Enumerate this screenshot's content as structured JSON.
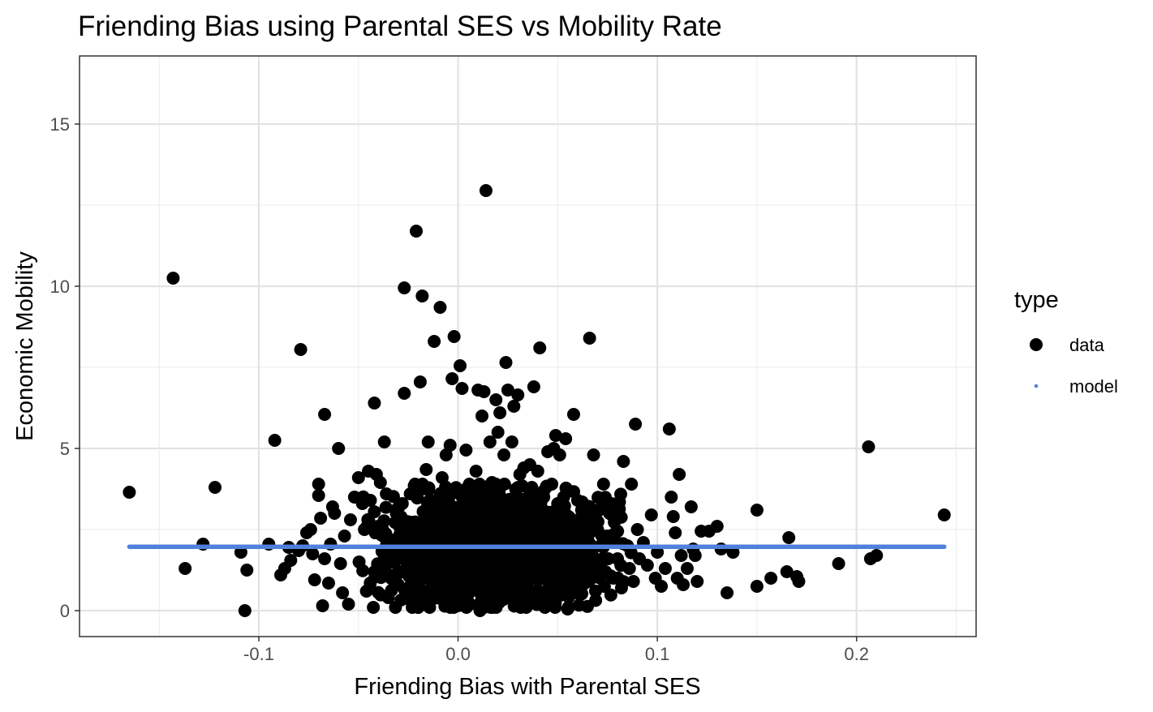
{
  "chart_data": {
    "type": "scatter",
    "title": "Friending Bias using Parental SES vs Mobility Rate",
    "xlabel": "Friending Bias with Parental SES",
    "ylabel": "Economic Mobility",
    "xlim": [
      -0.19,
      0.26
    ],
    "ylim": [
      -0.8,
      17.1
    ],
    "x_ticks": [
      -0.1,
      0.0,
      0.1,
      0.2
    ],
    "x_tick_labels": [
      "-0.1",
      "0.0",
      "0.1",
      "0.2"
    ],
    "x_minor_ticks": [
      -0.15,
      -0.05,
      0.05,
      0.15,
      0.25
    ],
    "y_ticks": [
      0,
      5,
      10,
      15
    ],
    "y_tick_labels": [
      "0",
      "5",
      "10",
      "15"
    ],
    "y_minor_ticks": [
      2.5,
      7.5,
      12.5
    ],
    "grid": true,
    "legend": {
      "title": "type",
      "position": "right",
      "items": [
        {
          "label": "data",
          "color": "#000000",
          "marker": "large-dot"
        },
        {
          "label": "model",
          "color": "#5080dd",
          "marker": "small-dot"
        }
      ]
    },
    "series": [
      {
        "name": "data",
        "color": "#000000",
        "points": [
          [
            -0.165,
            3.65
          ],
          [
            -0.143,
            10.25
          ],
          [
            -0.137,
            1.3
          ],
          [
            -0.128,
            2.05
          ],
          [
            -0.122,
            3.8
          ],
          [
            -0.109,
            1.8
          ],
          [
            -0.107,
            0.0
          ],
          [
            -0.106,
            1.25
          ],
          [
            -0.095,
            2.05
          ],
          [
            -0.092,
            5.25
          ],
          [
            -0.089,
            1.1
          ],
          [
            -0.087,
            1.3
          ],
          [
            -0.085,
            1.95
          ],
          [
            -0.084,
            1.55
          ],
          [
            -0.08,
            1.85
          ],
          [
            -0.079,
            8.05
          ],
          [
            -0.078,
            2.0
          ],
          [
            -0.076,
            2.4
          ],
          [
            -0.074,
            2.5
          ],
          [
            -0.073,
            1.75
          ],
          [
            -0.072,
            0.95
          ],
          [
            -0.07,
            3.9
          ],
          [
            -0.07,
            3.55
          ],
          [
            -0.069,
            2.85
          ],
          [
            -0.068,
            0.15
          ],
          [
            -0.067,
            6.05
          ],
          [
            -0.067,
            1.6
          ],
          [
            -0.065,
            0.85
          ],
          [
            -0.064,
            2.05
          ],
          [
            -0.063,
            3.2
          ],
          [
            -0.062,
            3.0
          ],
          [
            -0.06,
            5.0
          ],
          [
            -0.059,
            1.45
          ],
          [
            -0.058,
            0.55
          ],
          [
            -0.057,
            2.3
          ],
          [
            -0.055,
            0.2
          ],
          [
            -0.054,
            2.8
          ],
          [
            -0.052,
            3.5
          ],
          [
            -0.05,
            4.1
          ],
          [
            -0.048,
            3.3
          ],
          [
            -0.047,
            2.5
          ],
          [
            -0.046,
            0.6
          ],
          [
            -0.045,
            4.3
          ],
          [
            -0.044,
            3.4
          ],
          [
            -0.042,
            6.4
          ],
          [
            -0.042,
            1.2
          ],
          [
            -0.041,
            4.2
          ],
          [
            -0.04,
            2.6
          ],
          [
            -0.039,
            3.95
          ],
          [
            -0.037,
            5.2
          ],
          [
            -0.036,
            3.6
          ],
          [
            -0.035,
            0.4
          ],
          [
            -0.034,
            2.0
          ],
          [
            -0.032,
            1.5
          ],
          [
            -0.031,
            3.0
          ],
          [
            -0.03,
            0.8
          ],
          [
            -0.029,
            2.7
          ],
          [
            -0.028,
            3.3
          ],
          [
            -0.027,
            6.7
          ],
          [
            -0.027,
            9.95
          ],
          [
            -0.026,
            1.2
          ],
          [
            -0.025,
            2.4
          ],
          [
            -0.024,
            3.6
          ],
          [
            -0.023,
            0.1
          ],
          [
            -0.022,
            3.85
          ],
          [
            -0.021,
            11.7
          ],
          [
            -0.02,
            2.1
          ],
          [
            -0.019,
            7.05
          ],
          [
            -0.018,
            9.7
          ],
          [
            -0.017,
            1.5
          ],
          [
            -0.016,
            4.35
          ],
          [
            -0.015,
            5.2
          ],
          [
            -0.014,
            0.3
          ],
          [
            -0.013,
            3.1
          ],
          [
            -0.012,
            8.3
          ],
          [
            -0.011,
            2.5
          ],
          [
            -0.01,
            0.9
          ],
          [
            -0.009,
            9.35
          ],
          [
            -0.008,
            4.1
          ],
          [
            -0.007,
            1.9
          ],
          [
            -0.006,
            4.8
          ],
          [
            -0.005,
            3.4
          ],
          [
            -0.004,
            5.1
          ],
          [
            -0.003,
            7.15
          ],
          [
            -0.002,
            8.45
          ],
          [
            -0.001,
            0.5
          ],
          [
            0.0,
            2.2
          ],
          [
            0.001,
            7.55
          ],
          [
            0.002,
            6.85
          ],
          [
            0.003,
            3.0
          ],
          [
            0.004,
            4.95
          ],
          [
            0.005,
            1.3
          ],
          [
            0.006,
            0.2
          ],
          [
            0.007,
            3.6
          ],
          [
            0.008,
            2.7
          ],
          [
            0.009,
            4.3
          ],
          [
            0.01,
            6.8
          ],
          [
            0.011,
            0.0
          ],
          [
            0.012,
            6.0
          ],
          [
            0.013,
            6.75
          ],
          [
            0.014,
            12.95
          ],
          [
            0.015,
            2.9
          ],
          [
            0.016,
            5.2
          ],
          [
            0.017,
            3.95
          ],
          [
            0.018,
            1.1
          ],
          [
            0.019,
            6.5
          ],
          [
            0.02,
            5.5
          ],
          [
            0.021,
            6.1
          ],
          [
            0.022,
            3.3
          ],
          [
            0.023,
            4.8
          ],
          [
            0.024,
            7.65
          ],
          [
            0.025,
            6.8
          ],
          [
            0.026,
            0.8
          ],
          [
            0.027,
            5.2
          ],
          [
            0.028,
            6.3
          ],
          [
            0.029,
            2.3
          ],
          [
            0.03,
            6.65
          ],
          [
            0.031,
            4.2
          ],
          [
            0.032,
            3.0
          ],
          [
            0.033,
            4.4
          ],
          [
            0.034,
            1.6
          ],
          [
            0.035,
            2.6
          ],
          [
            0.036,
            4.5
          ],
          [
            0.037,
            3.8
          ],
          [
            0.038,
            6.9
          ],
          [
            0.039,
            1.0
          ],
          [
            0.04,
            4.3
          ],
          [
            0.041,
            8.1
          ],
          [
            0.042,
            2.2
          ],
          [
            0.043,
            3.5
          ],
          [
            0.044,
            0.6
          ],
          [
            0.045,
            4.9
          ],
          [
            0.046,
            2.9
          ],
          [
            0.047,
            1.8
          ],
          [
            0.048,
            5.0
          ],
          [
            0.049,
            5.4
          ],
          [
            0.05,
            3.3
          ],
          [
            0.051,
            4.8
          ],
          [
            0.052,
            2.0
          ],
          [
            0.053,
            3.5
          ],
          [
            0.054,
            5.3
          ],
          [
            0.055,
            0.05
          ],
          [
            0.056,
            2.7
          ],
          [
            0.057,
            1.4
          ],
          [
            0.058,
            6.05
          ],
          [
            0.06,
            3.4
          ],
          [
            0.061,
            2.2
          ],
          [
            0.062,
            3.1
          ],
          [
            0.063,
            0.9
          ],
          [
            0.064,
            2.4
          ],
          [
            0.066,
            8.4
          ],
          [
            0.067,
            2.8
          ],
          [
            0.068,
            4.8
          ],
          [
            0.069,
            1.6
          ],
          [
            0.07,
            2.5
          ],
          [
            0.072,
            3.2
          ],
          [
            0.073,
            3.9
          ],
          [
            0.074,
            1.2
          ],
          [
            0.075,
            2.3
          ],
          [
            0.077,
            3.3
          ],
          [
            0.078,
            1.0
          ],
          [
            0.079,
            2.8
          ],
          [
            0.08,
            1.6
          ],
          [
            0.081,
            3.35
          ],
          [
            0.082,
            0.7
          ],
          [
            0.083,
            4.6
          ],
          [
            0.085,
            2.0
          ],
          [
            0.086,
            1.3
          ],
          [
            0.087,
            3.9
          ],
          [
            0.088,
            0.9
          ],
          [
            0.089,
            5.75
          ],
          [
            0.09,
            2.5
          ],
          [
            0.091,
            1.6
          ],
          [
            0.093,
            2.1
          ],
          [
            0.095,
            1.4
          ],
          [
            0.097,
            2.95
          ],
          [
            0.099,
            1.0
          ],
          [
            0.1,
            1.8
          ],
          [
            0.102,
            0.75
          ],
          [
            0.104,
            1.3
          ],
          [
            0.106,
            5.6
          ],
          [
            0.107,
            3.5
          ],
          [
            0.108,
            2.9
          ],
          [
            0.109,
            2.4
          ],
          [
            0.11,
            1.0
          ],
          [
            0.111,
            4.2
          ],
          [
            0.112,
            1.7
          ],
          [
            0.113,
            0.8
          ],
          [
            0.115,
            1.3
          ],
          [
            0.117,
            3.2
          ],
          [
            0.118,
            1.9
          ],
          [
            0.119,
            1.7
          ],
          [
            0.12,
            0.9
          ],
          [
            0.122,
            2.45
          ],
          [
            0.126,
            2.45
          ],
          [
            0.13,
            2.6
          ],
          [
            0.132,
            1.9
          ],
          [
            0.135,
            0.55
          ],
          [
            0.138,
            1.8
          ],
          [
            0.15,
            3.1
          ],
          [
            0.15,
            0.75
          ],
          [
            0.157,
            1.0
          ],
          [
            0.165,
            1.2
          ],
          [
            0.166,
            2.25
          ],
          [
            0.17,
            1.05
          ],
          [
            0.171,
            0.9
          ],
          [
            0.191,
            1.45
          ],
          [
            0.206,
            5.05
          ],
          [
            0.207,
            1.6
          ],
          [
            0.21,
            1.7
          ],
          [
            0.244,
            2.95
          ]
        ],
        "dense_cluster": {
          "x_range": [
            -0.06,
            0.095
          ],
          "y_range": [
            0.1,
            3.9
          ],
          "center": [
            0.015,
            1.9
          ],
          "note": "hundreds of overlapping points"
        }
      },
      {
        "name": "model",
        "color": "#5080dd",
        "type": "line",
        "x": [
          -0.165,
          0.244
        ],
        "y": [
          1.97,
          1.97
        ]
      }
    ]
  }
}
